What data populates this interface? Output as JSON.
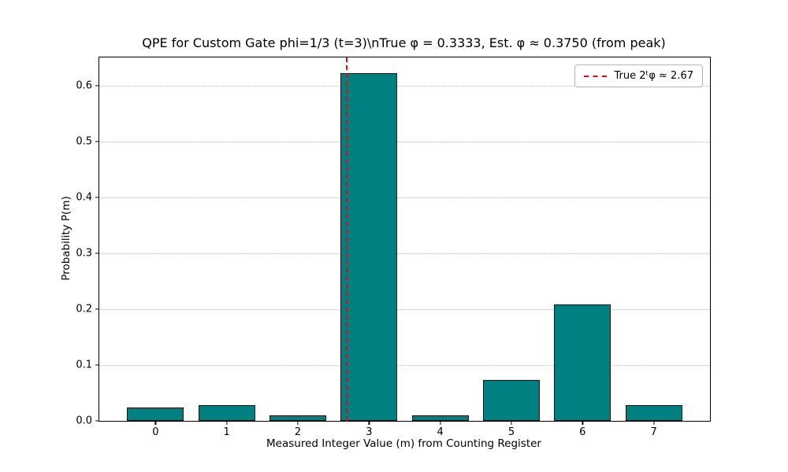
{
  "chart_data": {
    "type": "bar",
    "title": "QPE for Custom Gate phi=1/3 (t=3)\\nTrue φ = 0.3333, Est. φ ≈ 0.3750 (from peak)",
    "xlabel": "Measured Integer Value (m) from Counting Register",
    "ylabel": "Probability P(m)",
    "categories": [
      "0",
      "1",
      "2",
      "3",
      "4",
      "5",
      "6",
      "7"
    ],
    "values": [
      0.024,
      0.028,
      0.01,
      0.622,
      0.01,
      0.073,
      0.208,
      0.028
    ],
    "ylim": [
      0,
      0.65
    ],
    "yticks": [
      0.0,
      0.1,
      0.2,
      0.3,
      0.4,
      0.5,
      0.6
    ],
    "xlim": [
      -0.79,
      7.79
    ],
    "bar_width": 0.8,
    "bar_color": "#008080",
    "bar_edge_color": "#141414",
    "grid": "horizontal-dotted",
    "gridline_color": "#b9b9b9",
    "vline": {
      "x": 2.67,
      "color": "#ff0000",
      "style": "dashed"
    },
    "legend": {
      "position": "upper right",
      "entries": [
        {
          "label": "True 2ᵗφ ≈ 2.67",
          "color": "#ff0000",
          "style": "dashed"
        }
      ]
    }
  }
}
